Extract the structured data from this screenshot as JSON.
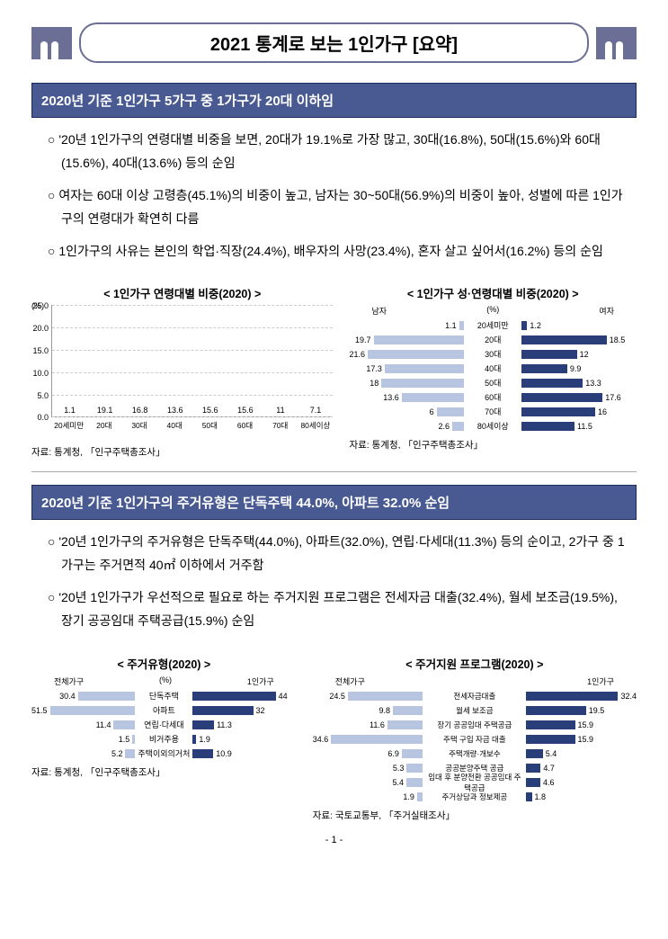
{
  "doc": {
    "title": "2021 통계로 보는 1인가구 [요약]",
    "page_label": "- 1 -"
  },
  "section1": {
    "heading": "2020년 기준 1인가구 5가구 중 1가구가 20대 이하임",
    "bullets": [
      "'20년 1인가구의 연령대별 비중을 보면, 20대가 19.1%로 가장 많고, 30대(16.8%), 50대(15.6%)와 60대(15.6%), 40대(13.6%) 등의 순임",
      "여자는 60대 이상 고령층(45.1%)의 비중이 높고, 남자는 30~50대(56.9%)의 비중이 높아, 성별에 따른 1인가구의 연령대가 확연히 다름",
      "1인가구의 사유는 본인의 학업·직장(24.4%), 배우자의 사망(23.4%), 혼자 살고 싶어서(16.2%) 등의 순임"
    ]
  },
  "chart_age": {
    "type": "bar",
    "title": "< 1인가구 연령대별 비중(2020) >",
    "unit": "(%)",
    "ymax": 25,
    "ytick_step": 5,
    "categories": [
      "20세미만",
      "20대",
      "30대",
      "40대",
      "50대",
      "60대",
      "70대",
      "80세이상"
    ],
    "values": [
      1.1,
      19.1,
      16.8,
      13.6,
      15.6,
      15.6,
      11.0,
      7.1
    ],
    "bar_color": "#2a3f7a",
    "grid_color": "#cccccc",
    "source": "자료: 통계청, 「인구주택총조사」"
  },
  "chart_sexage": {
    "type": "butterfly",
    "title": "< 1인가구 성·연령대별 비중(2020) >",
    "left_label": "남자",
    "right_label": "여자",
    "unit": "(%)",
    "categories": [
      "20세미만",
      "20대",
      "30대",
      "40대",
      "50대",
      "60대",
      "70대",
      "80세이상"
    ],
    "left_values": [
      1.1,
      19.7,
      21.6,
      17.3,
      18.0,
      13.6,
      6.0,
      2.6
    ],
    "right_values": [
      1.2,
      18.5,
      12.0,
      9.9,
      13.3,
      17.6,
      16.0,
      11.5
    ],
    "left_color": "#b8c5e0",
    "right_color": "#2a3f7a",
    "max": 25,
    "source": "자료: 통계청, 「인구주택총조사」"
  },
  "section2": {
    "heading": "2020년 기준 1인가구의 주거유형은 단독주택 44.0%, 아파트 32.0% 순임",
    "bullets": [
      "'20년 1인가구의 주거유형은 단독주택(44.0%), 아파트(32.0%), 연립·다세대(11.3%) 등의 순이고, 2가구 중 1가구는 주거면적 40㎡ 이하에서 거주함",
      "'20년 1인가구가 우선적으로 필요로 하는 주거지원 프로그램은 전세자금 대출(32.4%), 월세 보조금(19.5%), 장기 공공임대 주택공급(15.9%) 순임"
    ]
  },
  "chart_housing": {
    "type": "butterfly",
    "title": "< 주거유형(2020) >",
    "left_label": "전체가구",
    "right_label": "1인가구",
    "unit": "(%)",
    "categories": [
      "단독주택",
      "아파트",
      "연립·다세대",
      "비거주용",
      "주택이외의거처"
    ],
    "left_values": [
      30.4,
      51.5,
      11.4,
      1.5,
      5.2
    ],
    "right_values": [
      44.0,
      32.0,
      11.3,
      1.9,
      10.9
    ],
    "left_color": "#b8c5e0",
    "right_color": "#2a3f7a",
    "max": 55,
    "source": "자료: 통계청, 「인구주택총조사」"
  },
  "chart_program": {
    "type": "butterfly",
    "title": "< 주거지원 프로그램(2020) >",
    "left_label": "전체가구",
    "right_label": "1인가구",
    "unit": "",
    "categories": [
      "전세자금대출",
      "월세 보조금",
      "장기 공공임대 주택공급",
      "주택 구입 자금 대출",
      "주택개량·개보수",
      "공공분양주택 공급",
      "임대 후 분양전환 공공임대 주택공급",
      "주거상담과 정보제공"
    ],
    "left_values": [
      24.5,
      9.8,
      11.6,
      34.6,
      6.9,
      5.3,
      5.4,
      1.9
    ],
    "right_values": [
      32.4,
      19.5,
      15.9,
      15.9,
      5.4,
      4.7,
      4.6,
      1.8
    ],
    "left_color": "#b8c5e0",
    "right_color": "#2a3f7a",
    "max": 36,
    "source": "자료: 국토교통부, 「주거실태조사」"
  }
}
